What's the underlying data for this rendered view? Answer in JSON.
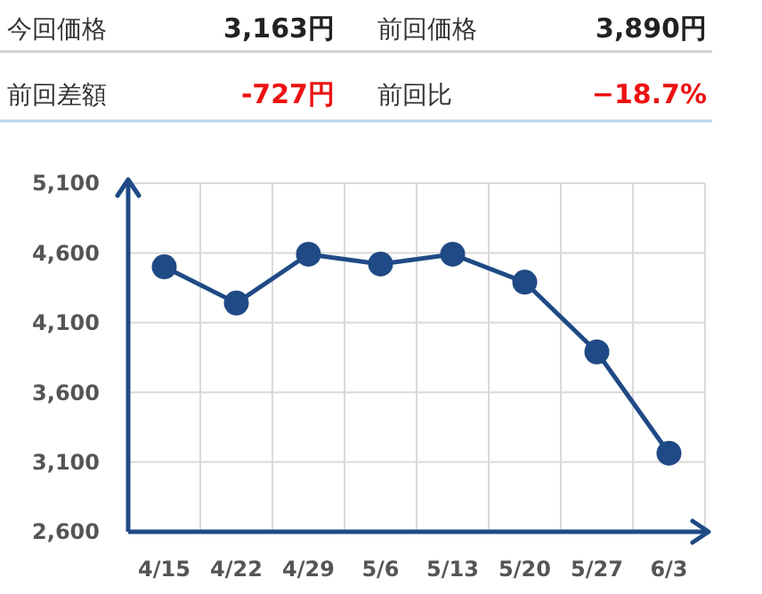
{
  "chart_data": [
    {
      "type": "other",
      "annotations": [
        "今回価格",
        "3,163円",
        "前回価格",
        "3,890円",
        "前回差額",
        "-727円",
        "前回比",
        "−18.7%"
      ],
      "colors": [
        "#333333",
        "#222222",
        "#333333",
        "#222222",
        "#333333",
        "#ee1111",
        "#333333",
        "#ee1111"
      ]
    },
    {
      "type": "line",
      "categories": [
        "4/15",
        "4/22",
        "4/29",
        "5/6",
        "5/13",
        "5/20",
        "5/27",
        "6/3"
      ],
      "series": [
        {
          "color": "#1f4a85",
          "values": [
            4500,
            4240,
            4590,
            4520,
            4590,
            4390,
            3890,
            3163
          ]
        }
      ],
      "ylim": [
        2600,
        5100
      ],
      "yticks": [
        {
          "value": 2600,
          "label": "2,600"
        },
        {
          "value": 3100,
          "label": "3,100"
        },
        {
          "value": 3600,
          "label": "3,600"
        },
        {
          "value": 4100,
          "label": "4,100"
        },
        {
          "value": 4600,
          "label": "4,600"
        },
        {
          "value": 5100,
          "label": "5,100"
        }
      ],
      "grid": true,
      "marker": "circle",
      "line_style": "solid"
    }
  ]
}
